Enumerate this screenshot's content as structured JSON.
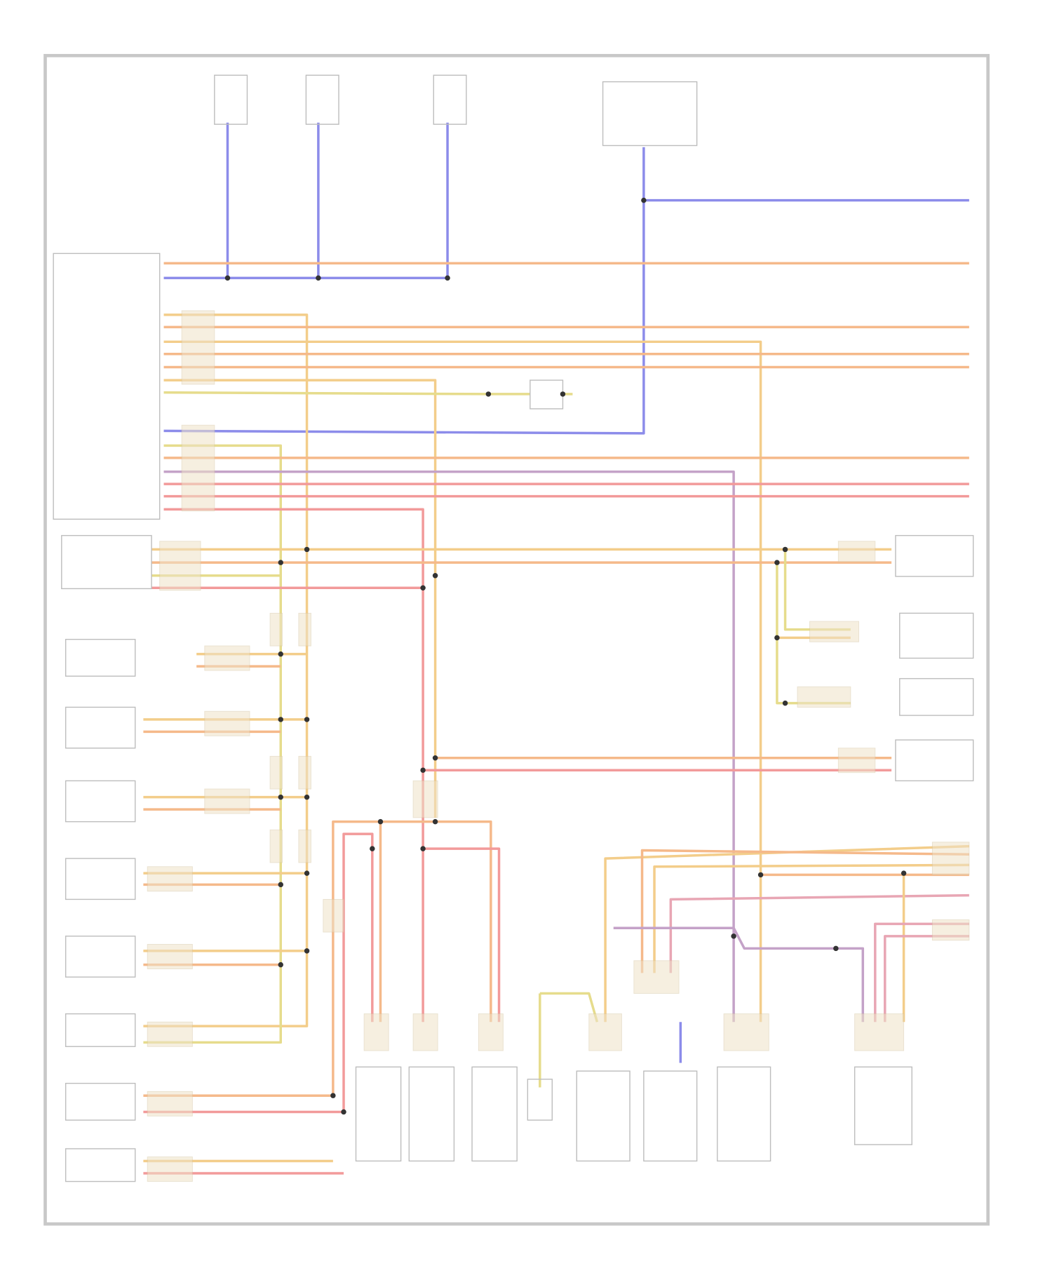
{
  "diagram": {
    "frame_color": "#c8c8c8",
    "component_stroke": "#bdbdbd",
    "label_ink": "#d0d0d0",
    "splice_color": "#333333",
    "wire_colors": {
      "blue": "#8c8cea",
      "orange": "#f5b98a",
      "yellow_orange": "#f3cd8a",
      "red": "#f29a9a",
      "pink": "#e8a6b4",
      "purple": "#c4a2c8",
      "yellow": "#e6dc8c",
      "gray": "#d8d8d8"
    }
  }
}
